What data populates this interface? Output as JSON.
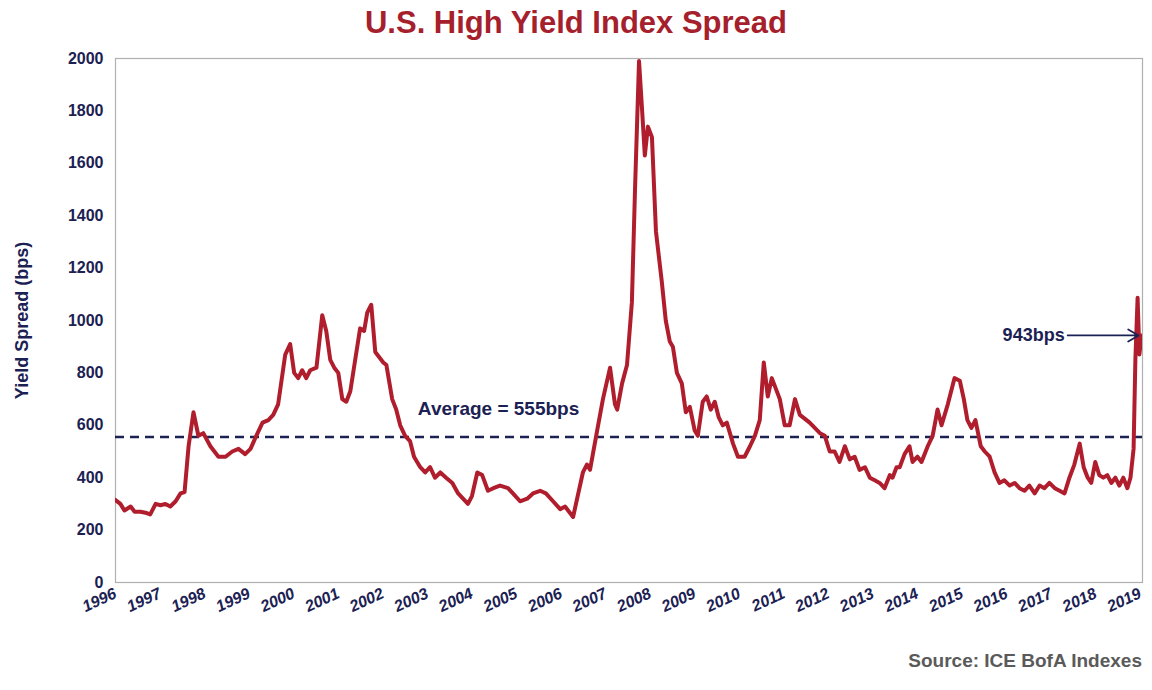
{
  "chart_data": {
    "type": "line",
    "title": "U.S. High Yield Index Spread",
    "y_label": "Yield Spread (bps)",
    "source": "Source: ICE BofA Indexes",
    "color": "#b01e2d",
    "grid": false,
    "x": [
      1996.0,
      1996.11,
      1996.2,
      1996.34,
      1996.43,
      1996.56,
      1996.7,
      1996.78,
      1996.9,
      1997.01,
      1997.12,
      1997.23,
      1997.35,
      1997.46,
      1997.55,
      1997.64,
      1997.75,
      1997.86,
      1997.97,
      1998.13,
      1998.31,
      1998.47,
      1998.62,
      1998.76,
      1998.91,
      1999.03,
      1999.16,
      1999.3,
      1999.43,
      1999.54,
      1999.65,
      1999.81,
      1999.92,
      2000.01,
      2000.1,
      2000.19,
      2000.28,
      2000.37,
      2000.51,
      2000.64,
      2000.73,
      2000.82,
      2000.91,
      2001.0,
      2001.09,
      2001.18,
      2001.27,
      2001.38,
      2001.49,
      2001.58,
      2001.65,
      2001.74,
      2001.83,
      2002.01,
      2002.08,
      2002.21,
      2002.3,
      2002.39,
      2002.5,
      2002.61,
      2002.7,
      2002.84,
      2002.95,
      2003.06,
      2003.17,
      2003.29,
      2003.42,
      2003.56,
      2003.69,
      2003.8,
      2003.91,
      2004.0,
      2004.12,
      2004.23,
      2004.36,
      2004.48,
      2004.63,
      2004.81,
      2004.92,
      2005.08,
      2005.24,
      2005.37,
      2005.53,
      2005.66,
      2005.82,
      2005.98,
      2006.09,
      2006.27,
      2006.49,
      2006.58,
      2006.65,
      2006.81,
      2006.94,
      2007.1,
      2007.21,
      2007.26,
      2007.37,
      2007.48,
      2007.59,
      2007.66,
      2007.75,
      2007.82,
      2007.88,
      2007.95,
      2008.04,
      2008.13,
      2008.26,
      2008.35,
      2008.44,
      2008.51,
      2008.6,
      2008.71,
      2008.8,
      2008.89,
      2009.0,
      2009.07,
      2009.18,
      2009.27,
      2009.36,
      2009.45,
      2009.54,
      2009.63,
      2009.72,
      2009.86,
      2009.97,
      2010.12,
      2010.24,
      2010.35,
      2010.46,
      2010.55,
      2010.64,
      2010.73,
      2010.91,
      2011.02,
      2011.13,
      2011.25,
      2011.36,
      2011.58,
      2011.81,
      2011.92,
      2012.03,
      2012.14,
      2012.25,
      2012.37,
      2012.48,
      2012.59,
      2012.7,
      2012.82,
      2012.93,
      2013.04,
      2013.15,
      2013.26,
      2013.38,
      2013.44,
      2013.53,
      2013.6,
      2013.71,
      2013.82,
      2013.89,
      2014.0,
      2014.09,
      2014.23,
      2014.34,
      2014.45,
      2014.54,
      2014.68,
      2014.83,
      2014.95,
      2015.04,
      2015.12,
      2015.21,
      2015.3,
      2015.42,
      2015.51,
      2015.62,
      2015.73,
      2015.84,
      2015.95,
      2016.07,
      2016.18,
      2016.29,
      2016.4,
      2016.51,
      2016.63,
      2016.74,
      2016.85,
      2016.96,
      2017.08,
      2017.19,
      2017.3,
      2017.41,
      2017.52,
      2017.64,
      2017.73,
      2017.82,
      2017.9,
      2017.99,
      2018.08,
      2018.17,
      2018.26,
      2018.35,
      2018.44,
      2018.53,
      2018.62,
      2018.71,
      2018.78,
      2018.85,
      2018.89,
      2018.94,
      2018.98,
      2019.03
    ],
    "values": [
      315,
      300,
      275,
      290,
      270,
      270,
      265,
      260,
      300,
      295,
      300,
      290,
      310,
      340,
      345,
      520,
      650,
      560,
      570,
      520,
      480,
      480,
      500,
      510,
      490,
      510,
      560,
      610,
      620,
      640,
      680,
      870,
      910,
      800,
      780,
      810,
      780,
      810,
      820,
      1020,
      960,
      850,
      820,
      800,
      700,
      690,
      730,
      850,
      970,
      960,
      1030,
      1060,
      880,
      840,
      830,
      700,
      660,
      600,
      560,
      540,
      480,
      440,
      420,
      440,
      400,
      420,
      400,
      380,
      340,
      320,
      300,
      330,
      420,
      410,
      350,
      360,
      370,
      360,
      340,
      310,
      320,
      340,
      350,
      340,
      310,
      280,
      290,
      250,
      420,
      450,
      430,
      580,
      700,
      820,
      680,
      660,
      760,
      830,
      1070,
      1500,
      1990,
      1800,
      1630,
      1740,
      1700,
      1340,
      1150,
      1000,
      920,
      900,
      800,
      760,
      650,
      670,
      580,
      560,
      690,
      710,
      660,
      690,
      630,
      600,
      610,
      530,
      480,
      480,
      520,
      560,
      620,
      840,
      710,
      780,
      700,
      600,
      600,
      700,
      640,
      610,
      570,
      560,
      500,
      500,
      460,
      520,
      470,
      480,
      430,
      440,
      400,
      390,
      380,
      360,
      410,
      400,
      440,
      440,
      490,
      520,
      460,
      480,
      460,
      520,
      560,
      660,
      600,
      680,
      780,
      770,
      700,
      620,
      590,
      620,
      520,
      500,
      480,
      420,
      380,
      390,
      370,
      380,
      360,
      350,
      370,
      340,
      370,
      360,
      380,
      360,
      350,
      340,
      400,
      450,
      530,
      440,
      400,
      380,
      460,
      410,
      400,
      410,
      380,
      400,
      370,
      400,
      360,
      400,
      510,
      850,
      1087,
      870,
      943
    ],
    "xlim": [
      1996,
      2019.05
    ],
    "xticks": [
      1996,
      1997,
      1998,
      1999,
      2000,
      2001,
      2002,
      2003,
      2004,
      2005,
      2006,
      2007,
      2008,
      2009,
      2010,
      2011,
      2012,
      2013,
      2014,
      2015,
      2016,
      2017,
      2018,
      2019
    ],
    "ylim": [
      0,
      2000
    ],
    "yticks": [
      0,
      200,
      400,
      600,
      800,
      1000,
      1200,
      1400,
      1600,
      1800,
      2000
    ],
    "reference_lines": [
      {
        "y": 555,
        "label": "Average = 555bps",
        "color": "#1b2152",
        "line_style": "dashed"
      }
    ],
    "annotations": [
      {
        "text": "943bps",
        "x": 2019.03,
        "y": 943,
        "color": "#1b2152"
      }
    ]
  }
}
